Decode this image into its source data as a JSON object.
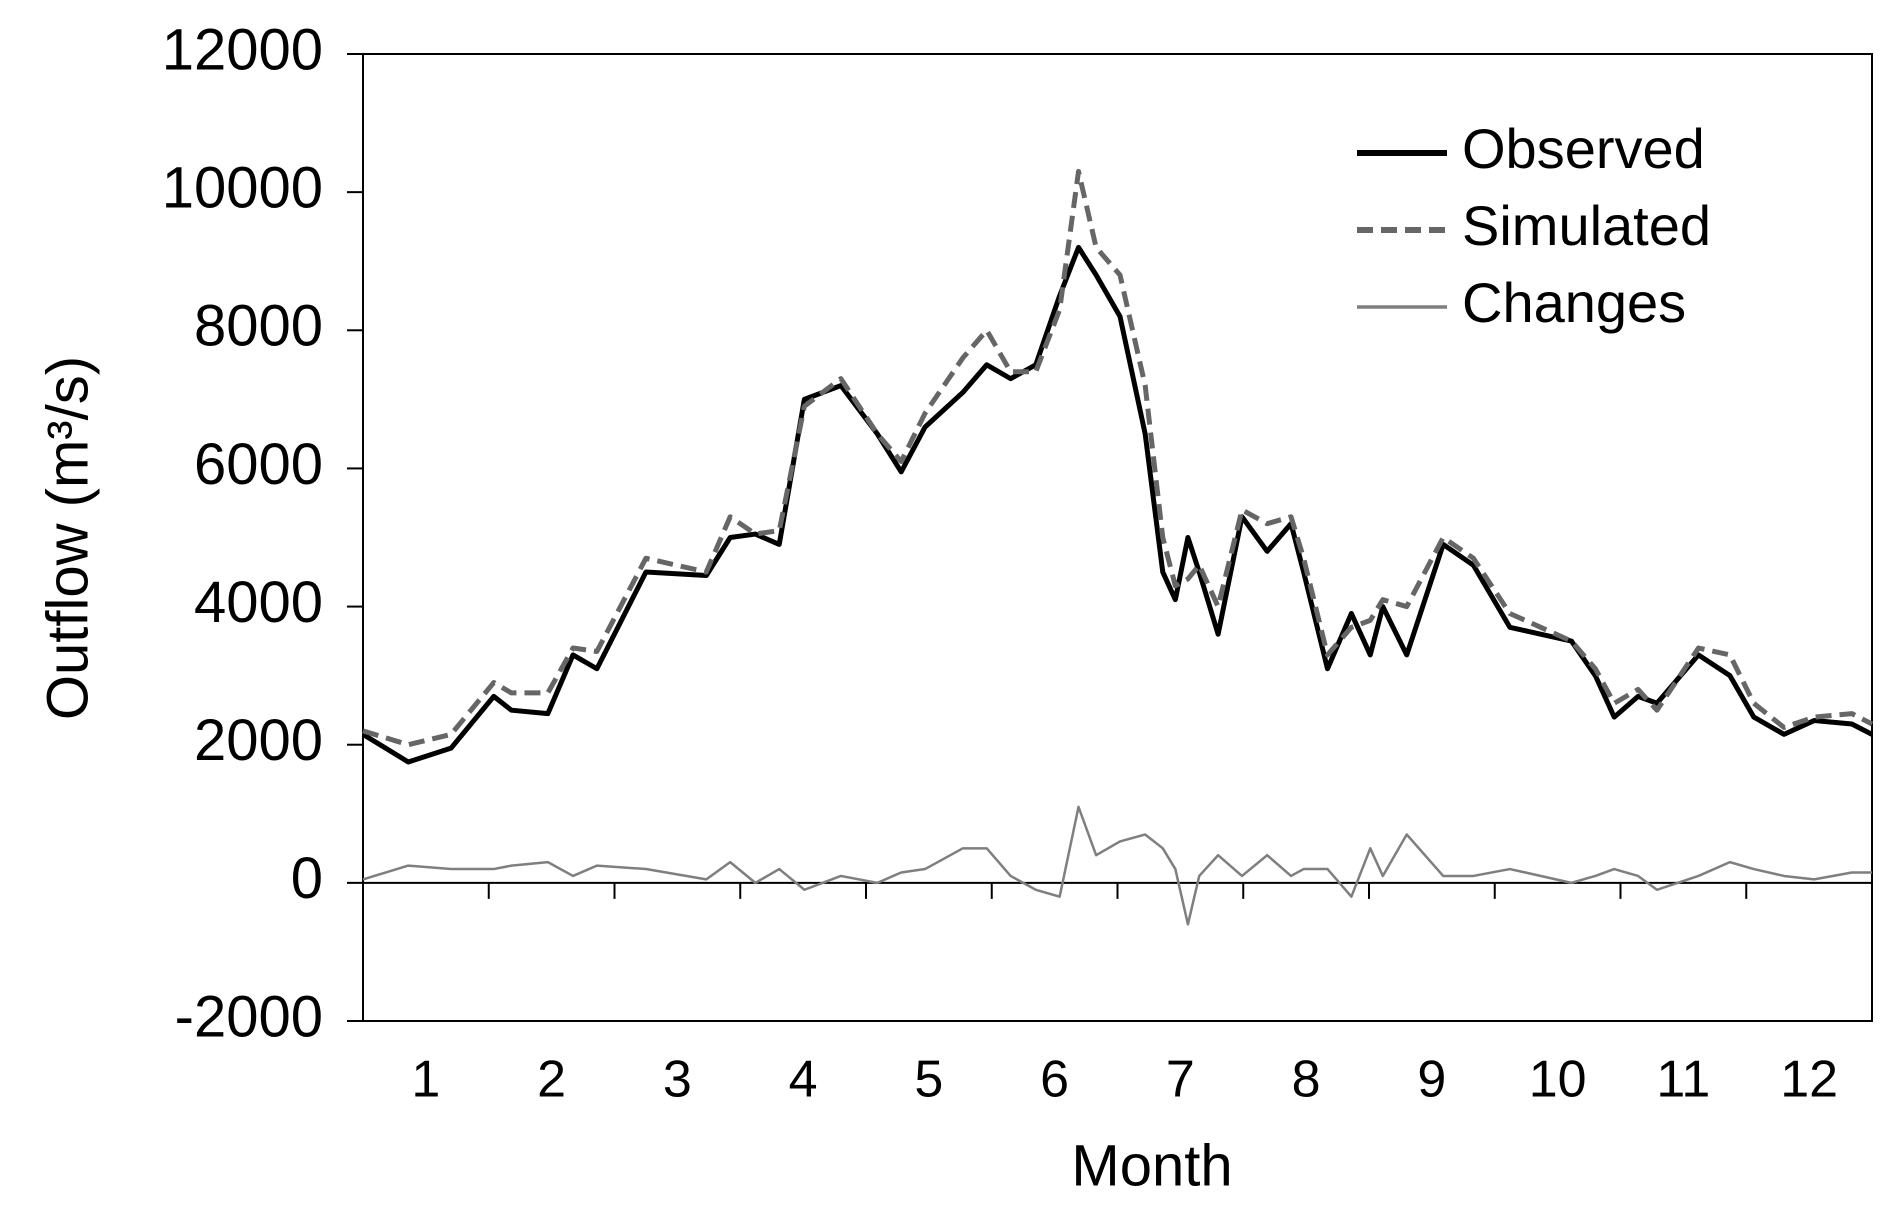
{
  "chart_data": {
    "type": "line",
    "x_label": "Month",
    "y_label": "Outflow (m³/s)",
    "x": [
      0,
      0.36,
      0.7,
      1.04,
      1.18,
      1.47,
      1.67,
      1.86,
      2.25,
      2.73,
      2.92,
      3.12,
      3.31,
      3.51,
      3.8,
      4.09,
      4.28,
      4.47,
      4.77,
      4.96,
      5.15,
      5.35,
      5.54,
      5.69,
      5.83,
      6.02,
      6.22,
      6.36,
      6.46,
      6.56,
      6.65,
      6.8,
      6.99,
      7.19,
      7.38,
      7.48,
      7.67,
      7.86,
      8.01,
      8.11,
      8.3,
      8.59,
      8.83,
      9.12,
      9.61,
      9.8,
      9.95,
      10.14,
      10.29,
      10.62,
      10.87,
      11.06,
      11.3,
      11.54,
      11.84,
      12
    ],
    "series": [
      {
        "name": "Observed",
        "color": "#000000",
        "style": "solid",
        "values": [
          2150,
          1750,
          1950,
          2700,
          2500,
          2450,
          3300,
          3100,
          4500,
          4450,
          5000,
          5050,
          4900,
          7000,
          7200,
          6500,
          5950,
          6600,
          7100,
          7500,
          7300,
          7500,
          8500,
          9200,
          8800,
          8200,
          6500,
          4500,
          4100,
          5000,
          4500,
          3600,
          5300,
          4800,
          5200,
          4500,
          3100,
          3900,
          3300,
          4000,
          3300,
          4900,
          4600,
          3700,
          3500,
          3000,
          2400,
          2700,
          2600,
          3300,
          3000,
          2400,
          2150,
          2350,
          2300,
          2150
        ]
      },
      {
        "name": "Simulated",
        "color": "#666666",
        "style": "dashed",
        "values": [
          2200,
          2000,
          2150,
          2900,
          2750,
          2750,
          3400,
          3350,
          4700,
          4500,
          5300,
          5050,
          5100,
          6900,
          7300,
          6500,
          6100,
          6800,
          7600,
          8000,
          7400,
          7400,
          8300,
          10300,
          9200,
          8800,
          7200,
          5000,
          4300,
          4400,
          4600,
          4000,
          5400,
          5200,
          5300,
          4700,
          3300,
          3700,
          3800,
          4100,
          4000,
          5000,
          4700,
          3900,
          3500,
          3100,
          2600,
          2800,
          2500,
          3400,
          3300,
          2600,
          2250,
          2400,
          2450,
          2300
        ]
      },
      {
        "name": "Changes",
        "color": "#7f7f7f",
        "style": "thin",
        "values": [
          50,
          250,
          200,
          200,
          250,
          300,
          100,
          250,
          200,
          50,
          300,
          0,
          200,
          -100,
          100,
          0,
          150,
          200,
          500,
          500,
          100,
          -100,
          -200,
          1100,
          400,
          600,
          700,
          500,
          200,
          -600,
          100,
          400,
          100,
          400,
          100,
          200,
          200,
          -200,
          500,
          100,
          700,
          100,
          100,
          200,
          0,
          100,
          200,
          100,
          -100,
          100,
          300,
          200,
          100,
          50,
          150,
          150
        ]
      }
    ],
    "xlim": [
      0,
      12
    ],
    "xticks": [
      {
        "value": 0.5,
        "label": "1"
      },
      {
        "value": 1.5,
        "label": "2"
      },
      {
        "value": 2.5,
        "label": "3"
      },
      {
        "value": 3.5,
        "label": "4"
      },
      {
        "value": 4.5,
        "label": "5"
      },
      {
        "value": 5.5,
        "label": "6"
      },
      {
        "value": 6.5,
        "label": "7"
      },
      {
        "value": 7.5,
        "label": "8"
      },
      {
        "value": 8.5,
        "label": "9"
      },
      {
        "value": 9.5,
        "label": "10"
      },
      {
        "value": 10.5,
        "label": "11"
      },
      {
        "value": 11.5,
        "label": "12"
      }
    ],
    "ylim": [
      -2000,
      12000
    ],
    "yticks": [
      -2000,
      0,
      2000,
      4000,
      6000,
      8000,
      10000,
      12000
    ],
    "legend": "upper right"
  }
}
